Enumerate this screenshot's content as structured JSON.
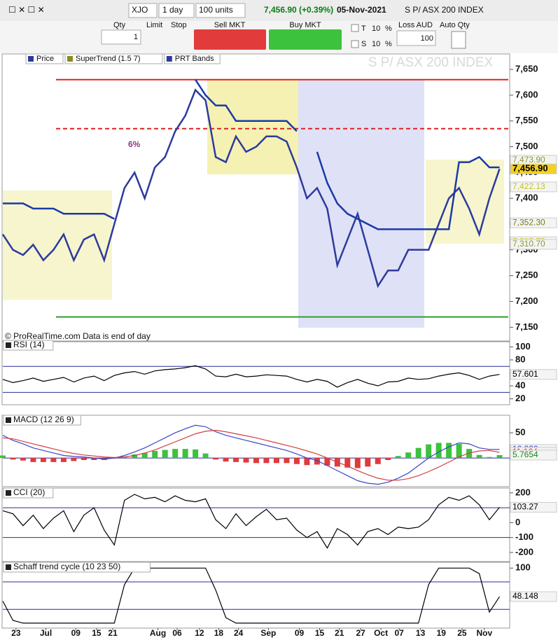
{
  "toolbar": {
    "symbol": "XJO",
    "period": "1 day",
    "units": "100 units",
    "price_change": "7,456.90 (+0.39%)",
    "date": "05-Nov-2021",
    "instrument": "S P/ ASX 200 INDEX"
  },
  "order_panel": {
    "qty_label": "Qty",
    "qty": "1",
    "limit_label": "Limit",
    "stop_label": "Stop",
    "sell_label": "Sell MKT",
    "buy_label": "Buy MKT",
    "t_label": "T",
    "t_value": "10",
    "t_unit": "%",
    "s_label": "S",
    "s_value": "10",
    "s_unit": "%",
    "loss_label": "Loss AUD",
    "loss": "100",
    "auto_qty_label": "Auto Qty"
  },
  "chart_data": [
    {
      "type": "line",
      "title": "S P/ ASX 200 INDEX",
      "legend": [
        "Price",
        "SuperTrend (1.5 7)",
        "PRT Bands"
      ],
      "annotation": "6%",
      "credit": "© ProRealTime.com  Data is end of day",
      "x": [
        0,
        2,
        4,
        6,
        8,
        10,
        12,
        14,
        16,
        18,
        20,
        22,
        24,
        26,
        28,
        30,
        32,
        34,
        36,
        38,
        40,
        42,
        44,
        46,
        48,
        50,
        52,
        54,
        56,
        58,
        60,
        62,
        64,
        66,
        68,
        70,
        72,
        74,
        76,
        78,
        80,
        82,
        84,
        86,
        88,
        90,
        92,
        94,
        96,
        98
      ],
      "xlim": [
        0,
        100
      ],
      "ylim": [
        7145,
        7665
      ],
      "yticks": [
        {
          "value": 7150,
          "label": "7,150"
        },
        {
          "value": 7200,
          "label": "7,200"
        },
        {
          "value": 7250,
          "label": "7,250"
        },
        {
          "value": 7300,
          "label": "7,300"
        },
        {
          "value": 7350,
          "label": "7,350"
        },
        {
          "value": 7400,
          "label": "7,400"
        },
        {
          "value": 7450,
          "label": "7,450"
        },
        {
          "value": 7500,
          "label": "7,500"
        },
        {
          "value": 7550,
          "label": "7,550"
        },
        {
          "value": 7600,
          "label": "7,600"
        },
        {
          "value": 7650,
          "label": "7,650"
        }
      ],
      "series": [
        {
          "name": "Price",
          "color": "#2d3a9e",
          "values": [
            7330,
            7300,
            7290,
            7310,
            7280,
            7300,
            7330,
            7280,
            7320,
            7330,
            7280,
            7350,
            7420,
            7450,
            7400,
            7460,
            7480,
            7530,
            7560,
            7610,
            7590,
            7480,
            7470,
            7520,
            7490,
            7500,
            7520,
            7520,
            7510,
            7460,
            7400,
            7420,
            7380,
            7270,
            7320,
            7370,
            7300,
            7230,
            7260,
            7260,
            7300,
            7300,
            7300,
            7350,
            7400,
            7420,
            7380,
            7330,
            7400,
            7457
          ]
        },
        {
          "name": "SuperTrend (1.5 7)",
          "color": "#1a3aa8",
          "values": [
            7390,
            7390,
            7390,
            7380,
            7380,
            7380,
            7370,
            7370,
            7370,
            7370,
            7370,
            7360,
            null,
            null,
            null,
            null,
            null,
            null,
            null,
            7630,
            7600,
            7580,
            7580,
            7550,
            7550,
            7550,
            7550,
            7550,
            7550,
            7530,
            null,
            7490,
            7430,
            7390,
            7370,
            7360,
            7350,
            7340,
            7340,
            7340,
            7340,
            7340,
            7340,
            7340,
            7340,
            7470,
            7470,
            7480,
            7460,
            7460
          ]
        }
      ],
      "hlines": [
        {
          "value": 7630,
          "color": "#e02020"
        },
        {
          "value": 7535,
          "color": "#e02020",
          "dashed": true
        },
        {
          "value": 7170,
          "color": "#2ca02c"
        }
      ],
      "price_labels": [
        {
          "value": 7473.9,
          "label": "7,473.90",
          "color": "#8a9a30"
        },
        {
          "value": 7456.9,
          "label": "7,456.90",
          "color": "#000000",
          "highlight": true
        },
        {
          "value": 7422.13,
          "label": "7,422.13",
          "color": "#c8c020"
        },
        {
          "value": 7352.3,
          "label": "7,352.30",
          "color": "#7a7a10"
        },
        {
          "value": 7315.72,
          "label": "7,315.72",
          "color": "#c8c020"
        },
        {
          "value": 7310.7,
          "label": "7,310.70",
          "color": "#8a9a30"
        }
      ]
    },
    {
      "type": "line",
      "title": "RSI (14)",
      "x": [
        0,
        2,
        4,
        6,
        8,
        10,
        12,
        14,
        16,
        18,
        20,
        22,
        24,
        26,
        28,
        30,
        32,
        34,
        36,
        38,
        40,
        42,
        44,
        46,
        48,
        50,
        52,
        54,
        56,
        58,
        60,
        62,
        64,
        66,
        68,
        70,
        72,
        74,
        76,
        78,
        80,
        82,
        84,
        86,
        88,
        90,
        92,
        94,
        96,
        98
      ],
      "xlim": [
        0,
        100
      ],
      "ylim": [
        12,
        108
      ],
      "yticks": [
        20,
        40,
        60,
        80,
        100
      ],
      "reflines": [
        70,
        30
      ],
      "series": [
        {
          "color": "#000000",
          "values": [
            50,
            45,
            48,
            52,
            47,
            50,
            53,
            46,
            52,
            55,
            48,
            56,
            60,
            62,
            58,
            63,
            65,
            66,
            68,
            71,
            66,
            55,
            54,
            58,
            54,
            55,
            57,
            56,
            55,
            50,
            46,
            50,
            47,
            38,
            45,
            50,
            44,
            40,
            46,
            47,
            52,
            50,
            51,
            55,
            58,
            60,
            56,
            50,
            55,
            57.6
          ]
        }
      ],
      "price_labels": [
        {
          "value": 57.601,
          "label": "57.601",
          "color": "#000000"
        }
      ]
    },
    {
      "type": "line",
      "title": "MACD (12 26 9)",
      "x": [
        0,
        2,
        4,
        6,
        8,
        10,
        12,
        14,
        16,
        18,
        20,
        22,
        24,
        26,
        28,
        30,
        32,
        34,
        36,
        38,
        40,
        42,
        44,
        46,
        48,
        50,
        52,
        54,
        56,
        58,
        60,
        62,
        64,
        66,
        68,
        70,
        72,
        74,
        76,
        78,
        80,
        82,
        84,
        86,
        88,
        90,
        92,
        94,
        96,
        98
      ],
      "xlim": [
        0,
        100
      ],
      "ylim": [
        -54,
        82
      ],
      "yticks": [
        50
      ],
      "reflines": [
        0
      ],
      "series": [
        {
          "style": "bar",
          "pos_color": "#3cc23c",
          "neg_color": "#e03a3a",
          "values": [
            5,
            -3,
            -5,
            -8,
            -8,
            -8,
            -8,
            -6,
            -4,
            -4,
            -4,
            -1,
            3,
            7,
            10,
            14,
            16,
            18,
            18,
            17,
            9,
            -3,
            -7,
            -8,
            -9,
            -10,
            -10,
            -10,
            -10,
            -12,
            -14,
            -13,
            -15,
            -17,
            -19,
            -20,
            -17,
            -12,
            -4,
            4,
            11,
            20,
            27,
            30,
            30,
            28,
            18,
            6,
            2,
            5.7654
          ]
        },
        {
          "color": "#3a46c8",
          "values": [
            45,
            35,
            28,
            20,
            15,
            10,
            5,
            3,
            2,
            0,
            -2,
            0,
            5,
            12,
            20,
            30,
            40,
            50,
            58,
            65,
            62,
            52,
            45,
            40,
            35,
            30,
            25,
            20,
            15,
            8,
            0,
            -5,
            -15,
            -25,
            -35,
            -45,
            -50,
            -52,
            -48,
            -40,
            -30,
            -15,
            0,
            12,
            22,
            30,
            28,
            20,
            17,
            16.93
          ]
        },
        {
          "color": "#d04040",
          "values": [
            40,
            38,
            33,
            28,
            23,
            18,
            13,
            9,
            6,
            4,
            2,
            1,
            2,
            5,
            10,
            16,
            24,
            32,
            40,
            48,
            53,
            55,
            52,
            48,
            44,
            40,
            35,
            30,
            25,
            20,
            14,
            8,
            0,
            -8,
            -16,
            -25,
            -33,
            -40,
            -44,
            -44,
            -41,
            -35,
            -27,
            -18,
            -8,
            2,
            10,
            14,
            15,
            11.164
          ]
        }
      ],
      "price_labels": [
        {
          "value": 16.93,
          "label": "16.930",
          "color": "#3a46c8"
        },
        {
          "value": 11.164,
          "label": "11.164",
          "color": "#d04040"
        },
        {
          "value": 5.7654,
          "label": "5.7654",
          "color": "#1a8a1a"
        }
      ]
    },
    {
      "type": "line",
      "title": "CCI (20)",
      "x": [
        0,
        2,
        4,
        6,
        8,
        10,
        12,
        14,
        16,
        18,
        20,
        22,
        24,
        26,
        28,
        30,
        32,
        34,
        36,
        38,
        40,
        42,
        44,
        46,
        48,
        50,
        52,
        54,
        56,
        58,
        60,
        62,
        64,
        66,
        68,
        70,
        72,
        74,
        76,
        78,
        80,
        82,
        84,
        86,
        88,
        90,
        92,
        94,
        96,
        98
      ],
      "xlim": [
        0,
        100
      ],
      "ylim": [
        -252,
        223
      ],
      "yticks": [
        -200,
        -100,
        0,
        100,
        200
      ],
      "reflines": [
        100,
        -100
      ],
      "series": [
        {
          "color": "#000000",
          "values": [
            80,
            60,
            -20,
            50,
            -40,
            30,
            80,
            -60,
            50,
            100,
            -50,
            -150,
            150,
            190,
            160,
            170,
            140,
            180,
            150,
            140,
            160,
            20,
            -40,
            60,
            -20,
            40,
            90,
            20,
            30,
            -50,
            -100,
            -60,
            -170,
            -40,
            -80,
            -150,
            -60,
            -40,
            -80,
            -30,
            -40,
            -30,
            20,
            120,
            170,
            150,
            180,
            120,
            20,
            103.27
          ]
        }
      ],
      "price_labels": [
        {
          "value": 103.27,
          "label": "103.27",
          "color": "#000000"
        }
      ]
    },
    {
      "type": "line",
      "title": "Schaff trend cycle (10 23 50)",
      "x": [
        0,
        2,
        4,
        6,
        8,
        10,
        12,
        14,
        16,
        18,
        20,
        22,
        24,
        26,
        28,
        30,
        32,
        34,
        36,
        38,
        40,
        42,
        44,
        46,
        48,
        50,
        52,
        54,
        56,
        58,
        60,
        62,
        64,
        66,
        68,
        70,
        72,
        74,
        76,
        78,
        80,
        82,
        84,
        86,
        88,
        90,
        92,
        94,
        96,
        98
      ],
      "xlim": [
        0,
        100
      ],
      "ylim": [
        -9,
        108
      ],
      "yticks": [
        100
      ],
      "reflines": [
        75,
        25
      ],
      "xticks": [
        {
          "value": 2.6,
          "label": "23"
        },
        {
          "value": 8.5,
          "label": "Jul"
        },
        {
          "value": 14.4,
          "label": "09"
        },
        {
          "value": 18.5,
          "label": "15"
        },
        {
          "value": 21.7,
          "label": "21"
        },
        {
          "value": 30.6,
          "label": "Aug"
        },
        {
          "value": 34.4,
          "label": "06"
        },
        {
          "value": 38.8,
          "label": "12"
        },
        {
          "value": 42.6,
          "label": "18"
        },
        {
          "value": 46.5,
          "label": "24"
        },
        {
          "value": 52.4,
          "label": "Sep"
        },
        {
          "value": 58.5,
          "label": "09"
        },
        {
          "value": 62.5,
          "label": "15"
        },
        {
          "value": 66.4,
          "label": "21"
        },
        {
          "value": 70.6,
          "label": "27"
        },
        {
          "value": 74.6,
          "label": "Oct"
        },
        {
          "value": 78.2,
          "label": "07"
        },
        {
          "value": 82.4,
          "label": "13"
        },
        {
          "value": 86.5,
          "label": "19"
        },
        {
          "value": 90.6,
          "label": "25"
        },
        {
          "value": 95,
          "label": "Nov"
        }
      ],
      "series": [
        {
          "color": "#000000",
          "values": [
            40,
            5,
            0,
            0,
            0,
            0,
            0,
            0,
            0,
            0,
            0,
            0,
            70,
            100,
            100,
            100,
            100,
            100,
            100,
            100,
            100,
            60,
            10,
            0,
            0,
            0,
            0,
            0,
            0,
            0,
            0,
            0,
            0,
            0,
            0,
            0,
            0,
            0,
            0,
            0,
            0,
            0,
            70,
            100,
            100,
            100,
            100,
            90,
            20,
            48.148
          ]
        }
      ],
      "price_labels": [
        {
          "value": 48.148,
          "label": "48.148",
          "color": "#000000"
        }
      ]
    }
  ]
}
